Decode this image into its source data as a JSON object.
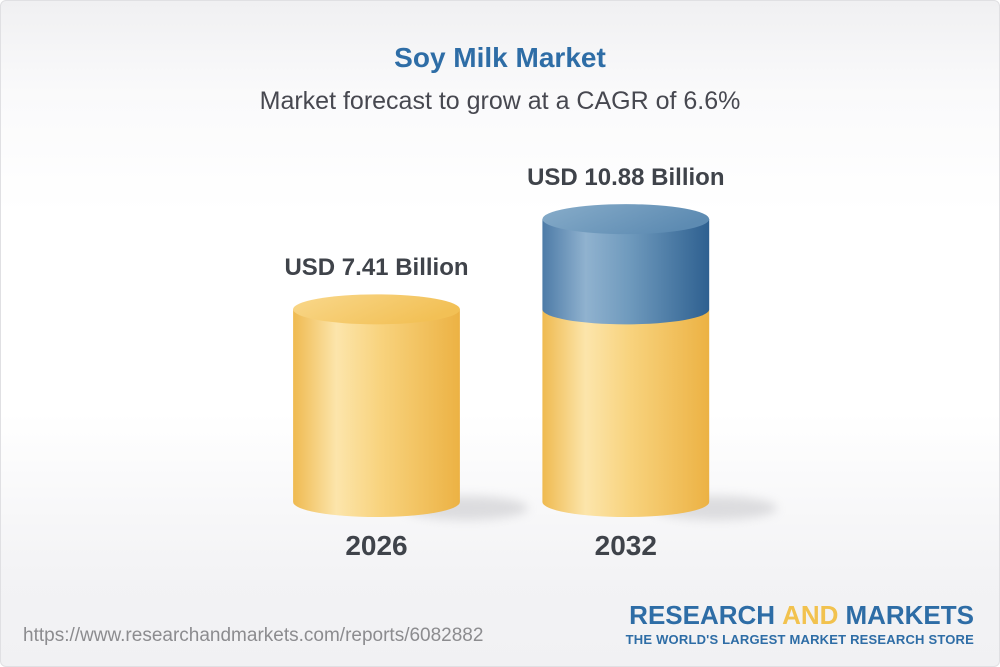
{
  "header": {
    "title": "Soy Milk Market",
    "subtitle": "Market forecast to grow at a CAGR of 6.6%"
  },
  "chart_data": {
    "type": "bar",
    "variant": "3d-cylinder",
    "categories": [
      "2026",
      "2032"
    ],
    "values": [
      7.41,
      10.88
    ],
    "value_labels": [
      "USD 7.41 Billion",
      "USD 10.88 Billion"
    ],
    "unit": "USD Billion",
    "cagr_pct": 6.6,
    "title": "Soy Milk Market",
    "xlabel": "",
    "ylabel": "",
    "legend": "none",
    "grid": false,
    "colors": {
      "base_cylinder": "#f6cd74",
      "growth_segment": "#5d8bb2",
      "label_text": "#3f434a",
      "title_blue": "#2e6da6"
    }
  },
  "footer": {
    "url": "https://www.researchandmarkets.com/reports/6082882",
    "logo": {
      "part1": "RESEARCH",
      "part2": "AND",
      "part3": "MARKETS",
      "tagline": "THE WORLD'S LARGEST MARKET RESEARCH STORE",
      "blue": "#2e6da6",
      "yellow": "#f2c24e"
    }
  }
}
